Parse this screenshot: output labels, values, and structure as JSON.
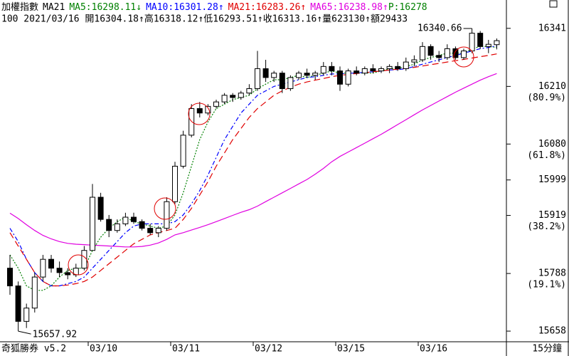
{
  "chart_data": {
    "type": "candlestick",
    "title": "加權指數",
    "indicator": "MA21",
    "last_price": "P:16278",
    "last_price_color": "#008000",
    "info": "100 2021/03/16 開16304.18↑高16318.12↑低16293.51↑收16313.16↑量623130↑額29433",
    "software": "奇狐勝券 v5.2",
    "period": "15分鐘",
    "high_label": "16340.66",
    "low_label": "15657.92",
    "categories": [
      null,
      null,
      null,
      null,
      null,
      null,
      null,
      null,
      null,
      null,
      "03/10",
      null,
      null,
      null,
      null,
      null,
      null,
      null,
      null,
      null,
      "03/11",
      null,
      null,
      null,
      null,
      null,
      null,
      null,
      null,
      null,
      "03/12",
      null,
      null,
      null,
      null,
      null,
      null,
      null,
      null,
      null,
      "03/15",
      null,
      null,
      null,
      null,
      null,
      null,
      null,
      null,
      null,
      "03/16",
      null,
      null,
      null,
      null,
      null,
      null,
      null,
      null,
      null
    ],
    "open": [
      15800,
      15760,
      15680,
      15710,
      15780,
      15820,
      15800,
      15790,
      15785,
      15800,
      15840,
      15960,
      15910,
      15885,
      15900,
      15915,
      15905,
      15890,
      15880,
      15890,
      15950,
      16030,
      16100,
      16160,
      16150,
      16165,
      16175,
      16190,
      16185,
      16195,
      16205,
      16250,
      16230,
      16240,
      16205,
      16230,
      16240,
      16235,
      16240,
      16255,
      16245,
      16215,
      16245,
      16240,
      16250,
      16245,
      16250,
      16255,
      16250,
      16265,
      16270,
      16300,
      16280,
      16275,
      16295,
      16275,
      16290,
      16330,
      16300,
      16304.18
    ],
    "high": [
      15830,
      15770,
      15720,
      15790,
      15830,
      15830,
      15815,
      15800,
      15810,
      15850,
      15990,
      15970,
      15920,
      15910,
      15925,
      15925,
      15910,
      15900,
      15895,
      15960,
      16040,
      16110,
      16170,
      16175,
      16170,
      16180,
      16195,
      16195,
      16200,
      16215,
      16290,
      16270,
      16245,
      16245,
      16235,
      16245,
      16250,
      16245,
      16265,
      16265,
      16255,
      16250,
      16255,
      16255,
      16260,
      16255,
      16260,
      16265,
      16275,
      16280,
      16310,
      16305,
      16290,
      16305,
      16300,
      16295,
      16340.66,
      16335,
      16315,
      16318.12
    ],
    "low": [
      15740,
      15657.92,
      15665,
      15700,
      15770,
      15790,
      15780,
      15775,
      15780,
      15795,
      15840,
      15905,
      15870,
      15880,
      15895,
      15900,
      15885,
      15875,
      15870,
      15885,
      15945,
      16025,
      16095,
      16140,
      16145,
      16160,
      16170,
      16175,
      16180,
      16190,
      16200,
      16220,
      16220,
      16195,
      16200,
      16225,
      16230,
      16225,
      16235,
      16235,
      16200,
      16210,
      16235,
      16235,
      16240,
      16240,
      16240,
      16245,
      16245,
      16255,
      16265,
      16270,
      16265,
      16270,
      16270,
      16270,
      16285,
      16295,
      16285,
      16293.51
    ],
    "close": [
      15760,
      15680,
      15710,
      15780,
      15820,
      15800,
      15790,
      15785,
      15800,
      15840,
      15960,
      15910,
      15885,
      15900,
      15915,
      15905,
      15890,
      15880,
      15890,
      15950,
      16030,
      16100,
      16160,
      16150,
      16165,
      16175,
      16190,
      16185,
      16195,
      16205,
      16250,
      16230,
      16240,
      16205,
      16230,
      16240,
      16235,
      16240,
      16255,
      16245,
      16215,
      16245,
      16240,
      16250,
      16245,
      16250,
      16255,
      16250,
      16265,
      16270,
      16300,
      16280,
      16275,
      16295,
      16275,
      16290,
      16330,
      16300,
      16305,
      16313.16
    ],
    "up_color": "#ffffff",
    "down_color": "#000000",
    "series": [
      {
        "name": "MA5:16298.11",
        "arrow": "↓",
        "color": "#008000",
        "style": "dotted",
        "values": [
          15830,
          15800,
          15760,
          15750,
          15750,
          15760,
          15780,
          15795,
          15800,
          15800,
          15840,
          15870,
          15890,
          15905,
          15915,
          15905,
          15900,
          15895,
          15890,
          15895,
          15920,
          15970,
          16030,
          16090,
          16130,
          16160,
          16170,
          16180,
          16185,
          16190,
          16205,
          16215,
          16225,
          16225,
          16230,
          16235,
          16230,
          16235,
          16240,
          16245,
          16240,
          16240,
          16240,
          16240,
          16240,
          16245,
          16250,
          16250,
          16255,
          16260,
          16270,
          16275,
          16280,
          16285,
          16285,
          16285,
          16295,
          16300,
          16300,
          16298.11
        ]
      },
      {
        "name": "MA10:16301.28",
        "arrow": "↑",
        "color": "#0000ff",
        "style": "dashdot",
        "values": [
          15890,
          15860,
          15820,
          15790,
          15770,
          15760,
          15760,
          15765,
          15770,
          15780,
          15800,
          15820,
          15840,
          15860,
          15880,
          15895,
          15900,
          15900,
          15900,
          15900,
          15905,
          15920,
          15945,
          15975,
          16010,
          16050,
          16090,
          16120,
          16150,
          16170,
          16190,
          16200,
          16210,
          16215,
          16220,
          16225,
          16230,
          16232,
          16235,
          16238,
          16238,
          16240,
          16240,
          16242,
          16243,
          16245,
          16247,
          16248,
          16250,
          16255,
          16260,
          16265,
          16270,
          16275,
          16280,
          16285,
          16290,
          16295,
          16298,
          16301.28
        ]
      },
      {
        "name": "MA21:16283.26",
        "arrow": "↑",
        "color": "#e00000",
        "style": "dashed",
        "values": [
          15880,
          15850,
          15820,
          15790,
          15770,
          15760,
          15760,
          15762,
          15765,
          15770,
          15780,
          15795,
          15810,
          15825,
          15840,
          15855,
          15865,
          15875,
          15880,
          15885,
          15890,
          15910,
          15935,
          15965,
          15995,
          16030,
          16060,
          16090,
          16115,
          16140,
          16160,
          16175,
          16190,
          16200,
          16208,
          16215,
          16220,
          16224,
          16228,
          16232,
          16235,
          16237,
          16239,
          16241,
          16243,
          16245,
          16247,
          16249,
          16251,
          16253,
          16256,
          16259,
          16262,
          16265,
          16268,
          16271,
          16274,
          16277,
          16280,
          16283.26
        ]
      },
      {
        "name": "MA65:16238.98",
        "arrow": "↑",
        "color": "#e000e0",
        "style": "solid",
        "values": [
          15924,
          15912,
          15898,
          15885,
          15874,
          15866,
          15860,
          15856,
          15854,
          15853,
          15852,
          15851,
          15850,
          15849,
          15848,
          15848,
          15849,
          15852,
          15857,
          15865,
          15875,
          15880,
          15886,
          15892,
          15898,
          15905,
          15912,
          15919,
          15926,
          15932,
          15940,
          15950,
          15960,
          15970,
          15980,
          15990,
          16000,
          16012,
          16025,
          16040,
          16052,
          16062,
          16072,
          16082,
          16092,
          16102,
          16113,
          16124,
          16135,
          16146,
          16157,
          16167,
          16177,
          16187,
          16197,
          16206,
          16215,
          16224,
          16232,
          16238.98
        ]
      }
    ],
    "ylim": [
      15634,
      16376
    ],
    "yticks": [
      15658,
      15788,
      15919,
      15999,
      16080,
      16210,
      16341
    ],
    "retracements": [
      {
        "value": 15788,
        "label": "(19.1%)"
      },
      {
        "value": 15919,
        "label": "(38.2%)"
      },
      {
        "value": 16080,
        "label": "(61.8%)"
      },
      {
        "value": 16210,
        "label": "(80.9%)"
      }
    ]
  }
}
